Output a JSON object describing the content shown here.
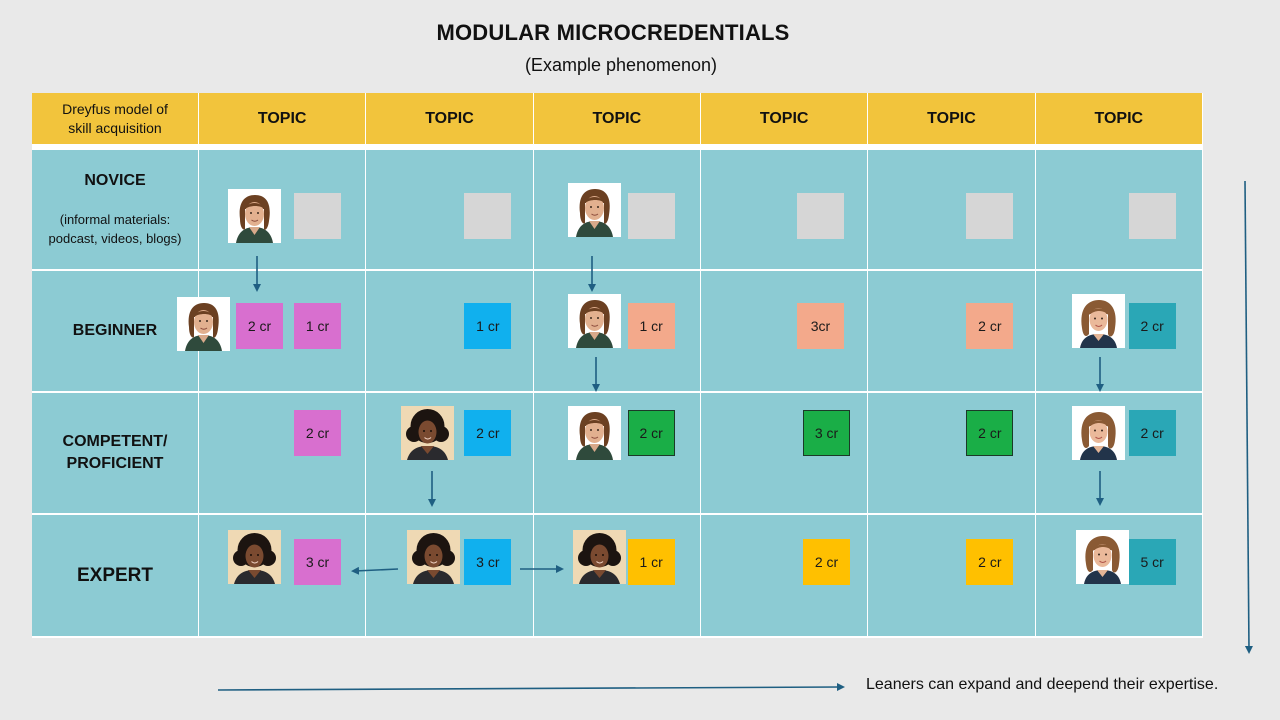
{
  "title": "MODULAR MICROCREDENTIALS",
  "subtitle": "(Example phenomenon)",
  "header": {
    "corner_line1": "Dreyfus model of",
    "corner_line2": "skill acquisition",
    "topics": [
      "TOPIC",
      "TOPIC",
      "TOPIC",
      "TOPIC",
      "TOPIC",
      "TOPIC"
    ]
  },
  "rows": {
    "novice": {
      "label": "NOVICE",
      "sub_line1": "(informal materials:",
      "sub_line2": "podcast, videos, blogs)"
    },
    "beginner": {
      "label": "BEGINNER"
    },
    "competent": {
      "label_line1": "COMPETENT/",
      "label_line2": "PROFICIENT"
    },
    "expert": {
      "label": "EXPERT"
    }
  },
  "credits": {
    "beginner": [
      "2 cr",
      "1 cr",
      "1 cr",
      "1 cr",
      "3cr",
      "2 cr",
      "2 cr"
    ],
    "competent": [
      "2 cr",
      "2 cr",
      "2 cr",
      "3 cr",
      "2 cr",
      "2 cr"
    ],
    "expert": [
      "3 cr",
      "3 cr",
      "1 cr",
      "2 cr",
      "2 cr",
      "5 cr"
    ]
  },
  "colors": {
    "header": "#f2c43c",
    "cell": "#8ccbd3",
    "arrow": "#1f5f82",
    "gray": "#d6d6d6",
    "pink": "#d86fcf",
    "blue": "#10b0ee",
    "peach": "#f3a98b",
    "teal": "#2aa7b6",
    "green": "#1aae47",
    "yellow": "#ffc000"
  },
  "caption": "Leaners can expand and deepend their expertise."
}
